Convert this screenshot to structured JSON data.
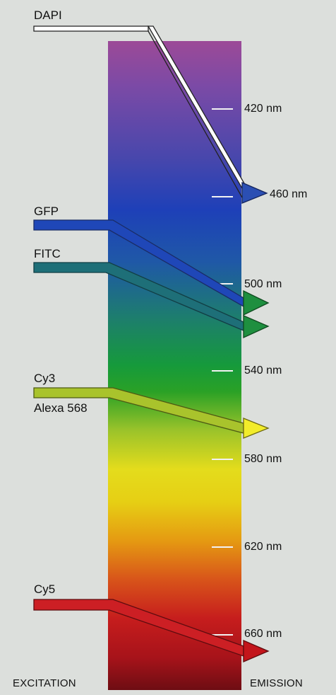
{
  "fluorophores": [
    {
      "id": "dapi",
      "name": "DAPI",
      "color": "#ffffff",
      "emission": "460 nm"
    },
    {
      "id": "gfp",
      "name": "GFP",
      "color": "#1f47b8",
      "emission": "500 nm"
    },
    {
      "id": "fitc",
      "name": "FITC",
      "color": "#1e6f78",
      "emission": "500 nm"
    },
    {
      "id": "cy3",
      "name": "Cy3",
      "name2": "Alexa 568",
      "color": "#a9c32c",
      "emission": "560 nm"
    },
    {
      "id": "cy5",
      "name": "Cy5",
      "color": "#cc1f24",
      "emission": "660 nm"
    }
  ],
  "arrowhead_colors": {
    "dapi": "#2b4fb3",
    "gfp": "#1e8f3f",
    "fitc": "#1e8f3f",
    "cy3": "#f2ec2a",
    "cy5": "#c3151b"
  },
  "wavelength_labels": [
    "420 nm",
    "460 nm",
    "500 nm",
    "540 nm",
    "580 nm",
    "620 nm",
    "660 nm"
  ],
  "axis": {
    "left": "EXCITATION",
    "right": "EMISSION"
  },
  "spectrum_colors": [
    "#9c4a97",
    "#7b4aa6",
    "#4847ac",
    "#1e40b8",
    "#1f58a7",
    "#1d7f6b",
    "#169a3b",
    "#2aa126",
    "#9bc32a",
    "#e4dc1c",
    "#e6cf14",
    "#e59a12",
    "#d8541a",
    "#c61d1d",
    "#a7131a",
    "#6e0d13"
  ]
}
